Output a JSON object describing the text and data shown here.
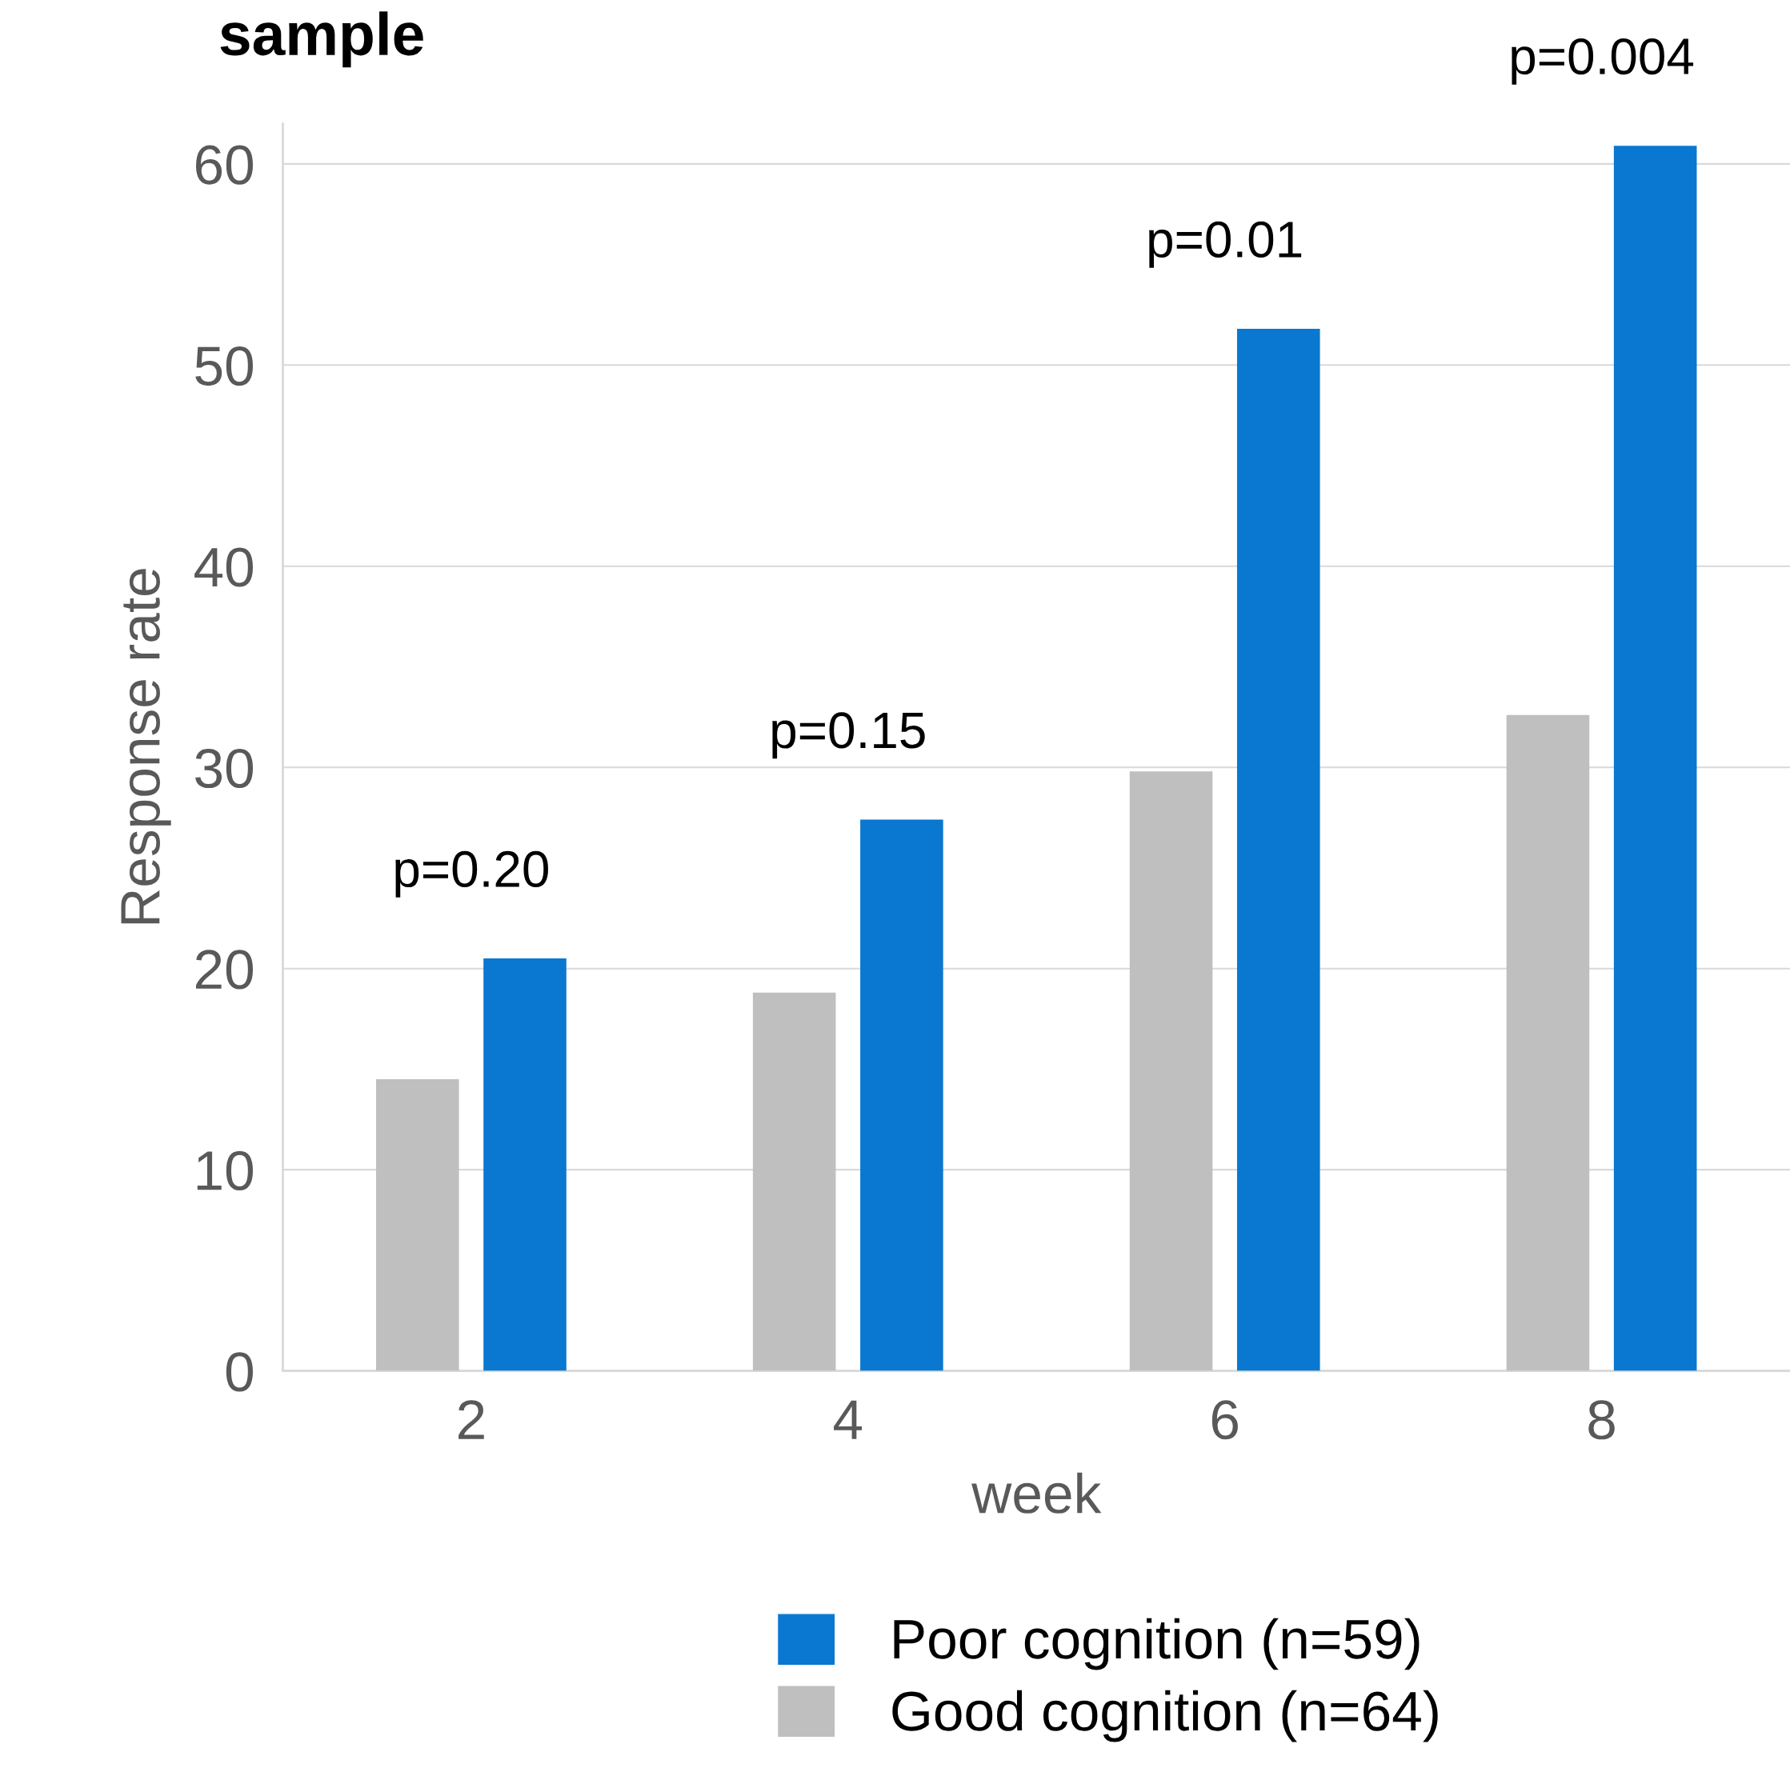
{
  "chart_data": {
    "type": "bar",
    "title": "sample",
    "xlabel": "week",
    "ylabel": "Response rate",
    "categories": [
      "2",
      "4",
      "6",
      "8"
    ],
    "series": [
      {
        "name": "Good cognition (n=64)",
        "color": "#bfbfbf",
        "values": [
          14.5,
          18.8,
          29.8,
          32.6
        ]
      },
      {
        "name": "Poor cognition (n=59)",
        "color": "#0a78d0",
        "values": [
          20.5,
          27.4,
          51.8,
          60.9
        ]
      }
    ],
    "ylim": [
      0,
      62
    ],
    "yticks": [
      0,
      10,
      20,
      30,
      40,
      50,
      60
    ],
    "grid": "y",
    "legend": "bottom",
    "annotations": [
      "p=0.20",
      "p=0.15",
      "p=0.01",
      "p=0.004"
    ]
  }
}
